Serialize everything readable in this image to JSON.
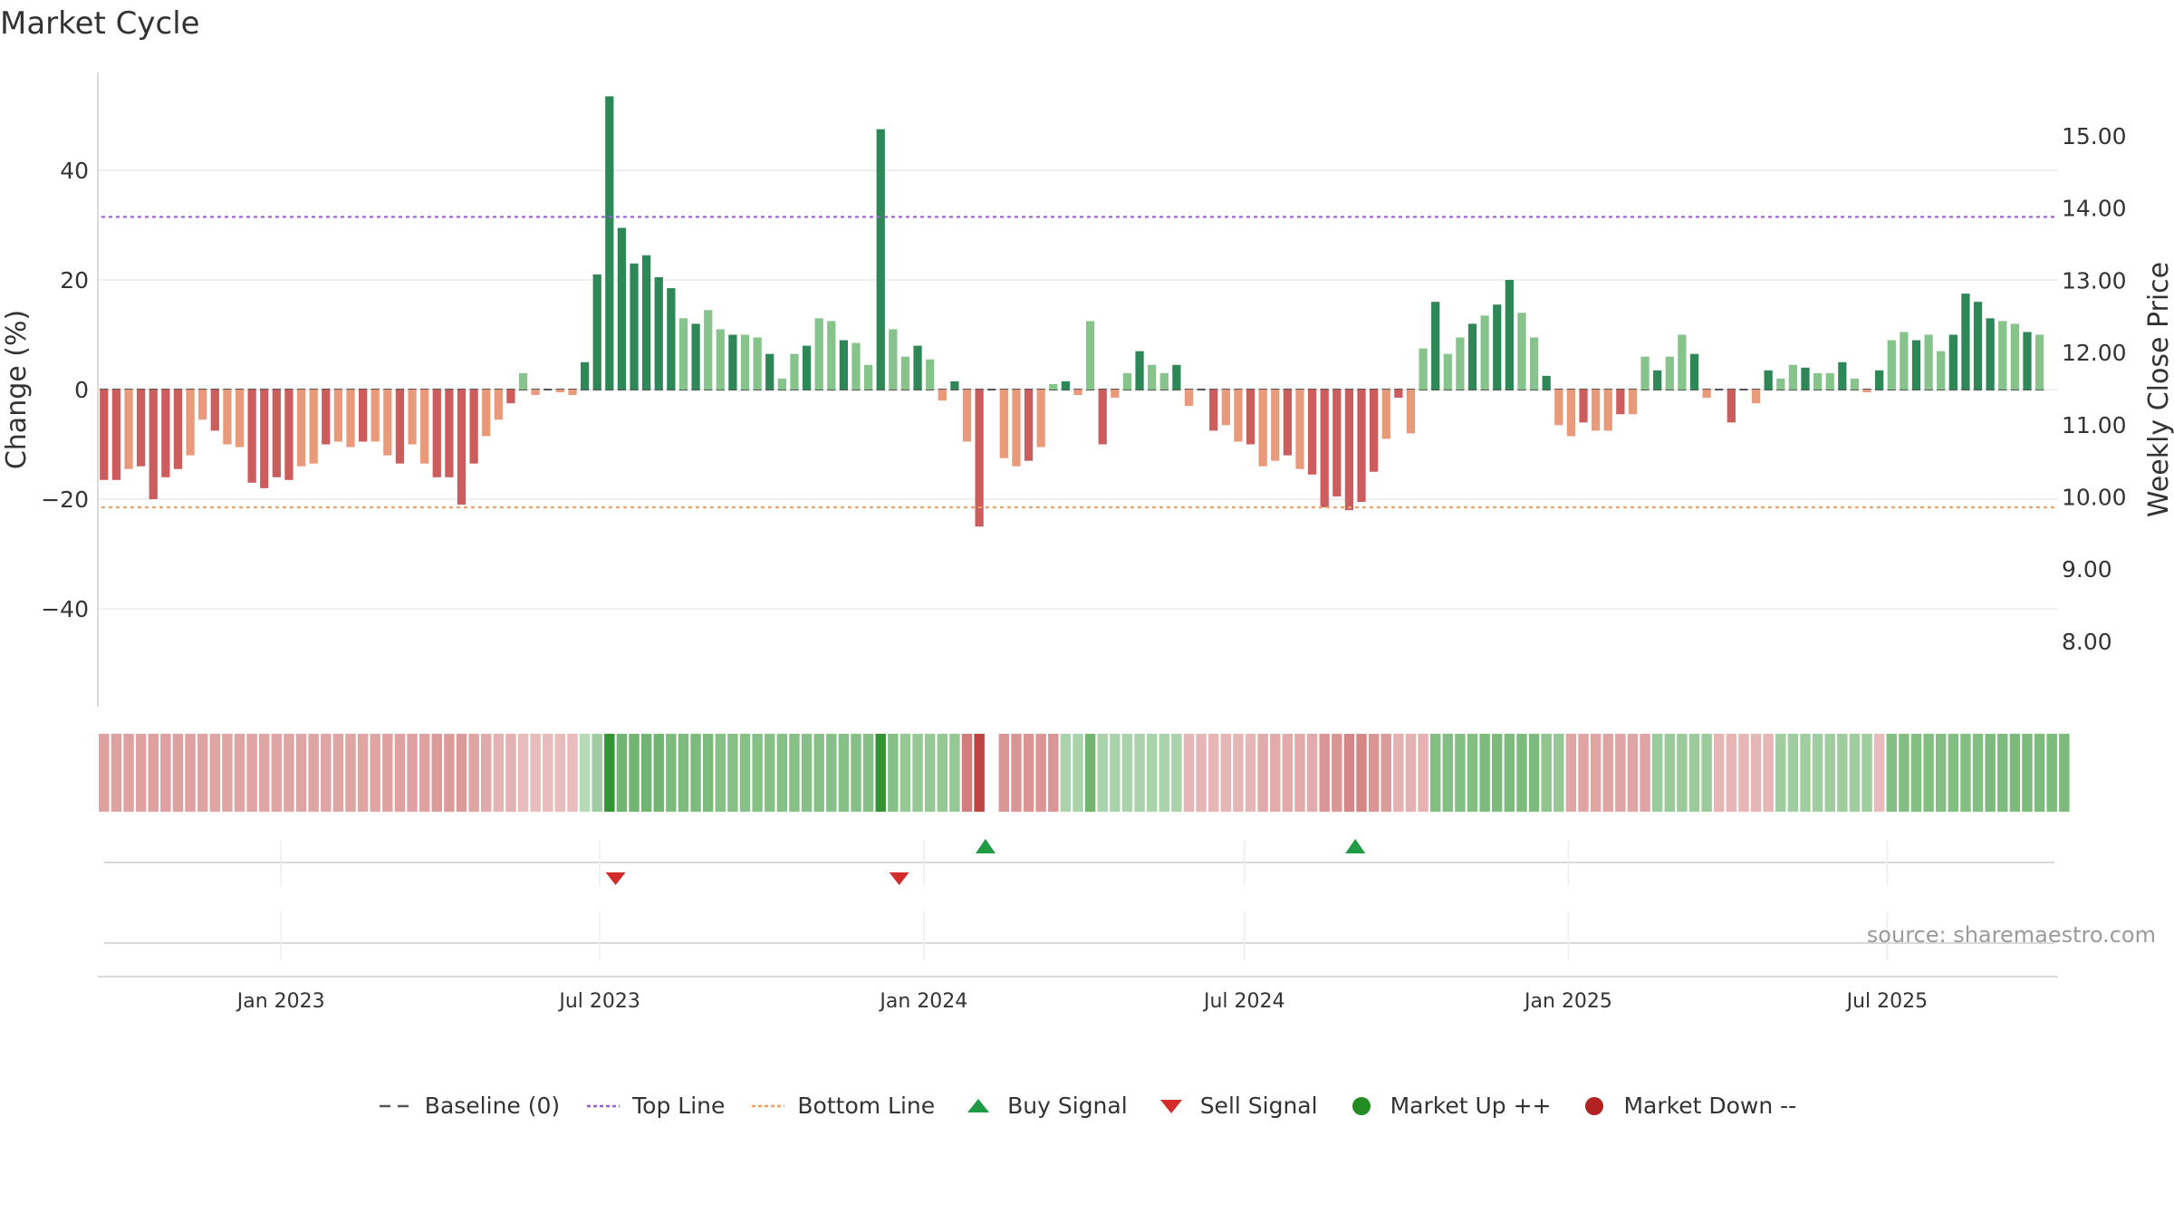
{
  "title": "Market Cycle",
  "source": "source: sharemaestro.com",
  "colors": {
    "up_strong": "#2e8756",
    "up_light": "#86c48c",
    "down_strong": "#cd5c5c",
    "down_light": "#e89a7a",
    "top_line": "#9a5cd6",
    "bottom_line": "#f0a060",
    "buy": "#1f9a45",
    "sell": "#d32a2a",
    "market_up": "#228b22",
    "market_down": "#b22222",
    "baseline": "#555555"
  },
  "legend": [
    {
      "key": "baseline",
      "label": "Baseline (0)",
      "icon": "dash-line-icon"
    },
    {
      "key": "top_line",
      "label": "Top Line",
      "icon": "dotted-line-icon"
    },
    {
      "key": "bottom_line",
      "label": "Bottom Line",
      "icon": "dotted-line-icon"
    },
    {
      "key": "buy",
      "label": "Buy Signal",
      "icon": "triangle-up-icon"
    },
    {
      "key": "sell",
      "label": "Sell Signal",
      "icon": "triangle-down-icon"
    },
    {
      "key": "market_up",
      "label": "Market Up ++",
      "icon": "circle-icon"
    },
    {
      "key": "market_down",
      "label": "Market Down --",
      "icon": "circle-icon"
    }
  ],
  "chart_data": {
    "type": "bar",
    "title": "Market Cycle",
    "ylabel": "Change (%)",
    "y2label": "Weekly Close Price",
    "ylim": [
      -58,
      58
    ],
    "y2lim": [
      7.0,
      15.7
    ],
    "y_ticks": [
      -40,
      -20,
      0,
      20,
      40
    ],
    "y_tick_labels": [
      "−40",
      "−20",
      "0",
      "20",
      "40"
    ],
    "y2_ticks": [
      8,
      9,
      10,
      11,
      12,
      13,
      14,
      15
    ],
    "y2_tick_labels": [
      "8.00",
      "9.00",
      "10.00",
      "11.00",
      "12.00",
      "13.00",
      "14.00",
      "15.00"
    ],
    "x_range": [
      "2022-09-19",
      "2025-10-06"
    ],
    "x_ticks": [
      "2023-01-01",
      "2023-07-01",
      "2024-01-01",
      "2024-07-01",
      "2025-01-01",
      "2025-07-01"
    ],
    "x_tick_labels": [
      "Jan 2023",
      "Jul 2023",
      "Jan 2024",
      "Jul 2024",
      "Jan 2025",
      "Jul 2025"
    ],
    "top_line": 31.5,
    "bottom_line": -21.5,
    "baseline": 0,
    "start_week": "2022-09-19",
    "values": [
      -16.5,
      -16.5,
      -14.5,
      -14,
      -20,
      -16,
      -14.5,
      -12,
      -5.5,
      -7.5,
      -10,
      -10.5,
      -17,
      -18,
      -16,
      -16.5,
      -14,
      -13.5,
      -10,
      -9.5,
      -10.5,
      -9.5,
      -9.5,
      -12,
      -13.5,
      -10,
      -13.5,
      -16,
      -16,
      -21,
      -13.5,
      -8.5,
      -5.5,
      -2.5,
      3,
      -1,
      0,
      -0.5,
      -1,
      5,
      21,
      53.5,
      29.5,
      23,
      24.5,
      20.5,
      18.5,
      13,
      12,
      14.5,
      11,
      10,
      10,
      9.5,
      6.5,
      2,
      6.5,
      8,
      13,
      12.5,
      9,
      8.5,
      4.5,
      47.5,
      11,
      6,
      8,
      5.5,
      -2,
      1.5,
      -9.5,
      -25,
      0,
      -12.5,
      -14,
      -13,
      -10.5,
      1,
      1.5,
      -1,
      12.5,
      -10,
      -1.5,
      3,
      7,
      4.5,
      3,
      4.5,
      -3,
      0,
      -7.5,
      -6.5,
      -9.5,
      -10,
      -14,
      -13,
      -12,
      -14.5,
      -15.5,
      -21.5,
      -19.5,
      -22,
      -20.5,
      -15,
      -9,
      -1.5,
      -8,
      7.5,
      16,
      6.5,
      9.5,
      12,
      13.5,
      15.5,
      20,
      14,
      9.5,
      2.5,
      -6.5,
      -8.5,
      -6,
      -7.5,
      -7.5,
      -4.5,
      -4.5,
      6,
      3.5,
      6,
      10,
      6.5,
      -1.5,
      0,
      -6,
      0,
      -2.5,
      3.5,
      2,
      4.5,
      4,
      3,
      3,
      5,
      2,
      -0.5,
      3.5,
      9,
      10.5,
      9,
      10,
      7,
      10,
      17.5,
      16,
      13,
      12.5,
      12,
      10.5,
      10
    ],
    "strip_values": [
      -20,
      -20,
      -20,
      -20,
      -20,
      -20,
      -20,
      -20,
      -18,
      -18,
      -18,
      -18,
      -18,
      -18,
      -18,
      -18,
      -18,
      -18,
      -18,
      -18,
      -18,
      -18,
      -18,
      -20,
      -20,
      -20,
      -20,
      -22,
      -22,
      -22,
      -18,
      -16,
      -12,
      -12,
      -8,
      -8,
      -8,
      -8,
      -8,
      10,
      20,
      75,
      40,
      40,
      40,
      40,
      35,
      35,
      35,
      35,
      30,
      30,
      30,
      30,
      30,
      30,
      30,
      30,
      30,
      30,
      30,
      30,
      30,
      75,
      30,
      25,
      25,
      25,
      25,
      25,
      -35,
      -60,
      null,
      -25,
      -25,
      -25,
      -25,
      -25,
      15,
      15,
      40,
      15,
      15,
      15,
      15,
      15,
      15,
      15,
      -10,
      -10,
      -10,
      -10,
      -10,
      -10,
      -15,
      -15,
      -15,
      -15,
      -15,
      -25,
      -25,
      -30,
      -30,
      -25,
      -22,
      -12,
      -12,
      -12,
      32,
      32,
      32,
      32,
      35,
      35,
      35,
      35,
      35,
      28,
      25,
      -18,
      -18,
      -18,
      -18,
      -18,
      -18,
      -18,
      22,
      22,
      22,
      22,
      22,
      -10,
      -10,
      -10,
      -10,
      -10,
      20,
      20,
      20,
      20,
      20,
      20,
      20,
      20,
      -8,
      32,
      32,
      32,
      32,
      32,
      32,
      32,
      32,
      35,
      35,
      35,
      35,
      35,
      35,
      35
    ],
    "buy_signals": [
      "2024-02-05",
      "2024-09-02"
    ],
    "sell_signals": [
      "2023-07-10",
      "2023-12-18"
    ]
  }
}
